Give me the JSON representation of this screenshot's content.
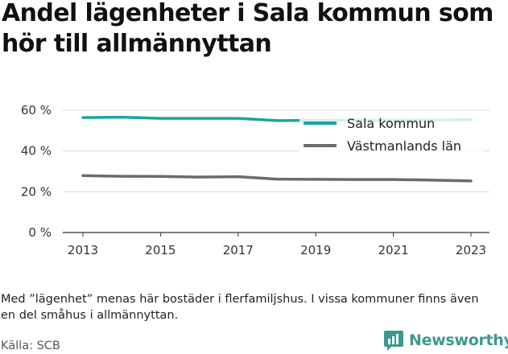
{
  "title": "Andel lägenheter i Sala kommun som hör till allmännyttan",
  "note": "Med ”lägenhet” menas här bostäder i flerfamiljshus. I vissa kommuner finns även en del småhus i allmännyttan.",
  "source": "Källa: SCB",
  "brand": {
    "name": "Newsworthy",
    "icon": "newsworthy-logo-icon",
    "color": "#3c9a8e"
  },
  "chart_data": {
    "type": "line",
    "title": "Andel lägenheter i Sala kommun som hör till allmännyttan",
    "x": [
      2013,
      2014,
      2015,
      2016,
      2017,
      2018,
      2019,
      2020,
      2021,
      2022,
      2023
    ],
    "x_ticks": [
      "2013",
      "2015",
      "2017",
      "2019",
      "2021",
      "2023"
    ],
    "y_ticks": [
      "0 %",
      "20 %",
      "40 %",
      "60 %"
    ],
    "ylim": [
      0,
      60
    ],
    "grid": true,
    "legend_position": "top-right",
    "series": [
      {
        "name": "Sala kommun",
        "color": "#1aa69a",
        "values": [
          56.4,
          56.6,
          56.0,
          56.0,
          56.0,
          54.9,
          55.0,
          55.2,
          55.1,
          55.2,
          55.4
        ]
      },
      {
        "name": "Västmanlands län",
        "color": "#6b6b6e",
        "values": [
          27.9,
          27.6,
          27.5,
          27.2,
          27.4,
          26.2,
          26.1,
          26.0,
          26.0,
          25.7,
          25.3
        ]
      }
    ]
  }
}
